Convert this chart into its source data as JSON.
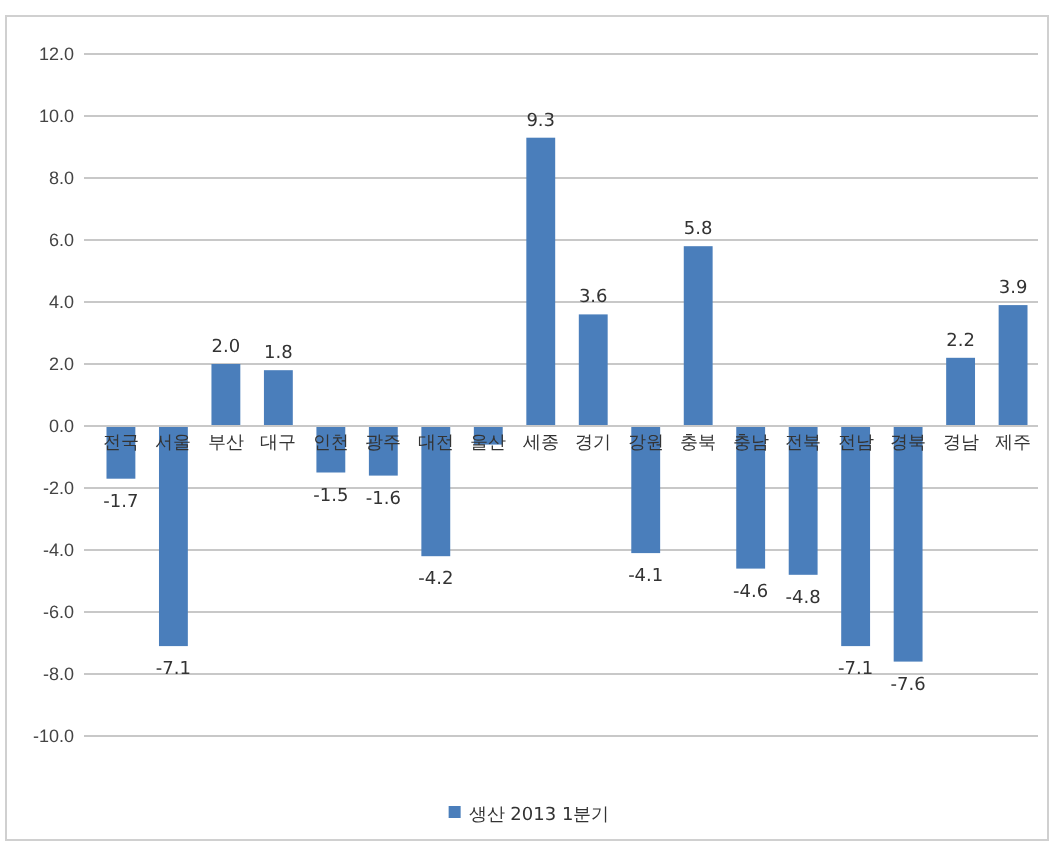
{
  "chart_data": {
    "type": "bar",
    "categories": [
      "전국",
      "서울",
      "부산",
      "대구",
      "인천",
      "광주",
      "대전",
      "울산",
      "세종",
      "경기",
      "강원",
      "충북",
      "충남",
      "전북",
      "전남",
      "경북",
      "경남",
      "제주"
    ],
    "series": [
      {
        "name": "생산 2013 1분기",
        "color": "#4a7ebb",
        "values": [
          -1.7,
          -7.1,
          2.0,
          1.8,
          -1.5,
          -1.6,
          -4.2,
          -0.6,
          9.3,
          3.6,
          -4.1,
          5.8,
          -4.6,
          -4.8,
          -7.1,
          -7.6,
          2.2,
          3.9
        ],
        "value_labels": [
          "-1.7",
          "-7.1",
          "2.0",
          "1.8",
          "-1.5",
          "-1.6",
          "-4.2",
          null,
          "9.3",
          "3.6",
          "-4.1",
          "5.8",
          "-4.6",
          "-4.8",
          "-7.1",
          "-7.6",
          "2.2",
          "3.9"
        ]
      }
    ],
    "ylim": [
      -10,
      12
    ],
    "yticks": [
      {
        "value": -10,
        "label": "-10.0"
      },
      {
        "value": -8,
        "label": "-8.0"
      },
      {
        "value": -6,
        "label": "-6.0"
      },
      {
        "value": -4,
        "label": "-4.0"
      },
      {
        "value": -2,
        "label": "-2.0"
      },
      {
        "value": 0,
        "label": "0.0"
      },
      {
        "value": 2,
        "label": "2.0"
      },
      {
        "value": 4,
        "label": "4.0"
      },
      {
        "value": 6,
        "label": "6.0"
      },
      {
        "value": 8,
        "label": "8.0"
      },
      {
        "value": 10,
        "label": "10.0"
      },
      {
        "value": 12,
        "label": "12.0"
      }
    ],
    "grid": "y",
    "legend": "bottom"
  }
}
